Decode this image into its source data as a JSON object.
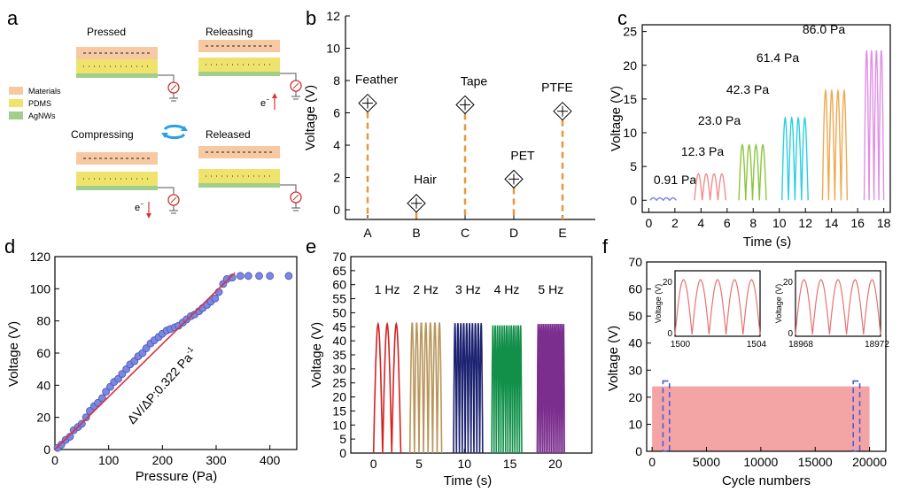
{
  "colors": {
    "materials": "#f7c9a3",
    "pdms": "#efe36e",
    "agnws": "#9fcf8a",
    "dashed_orange": "#e39a3c",
    "marker_blue": "#7b87e0",
    "fit_red": "#d9333a",
    "fatigue_pink": "#f3a5a5",
    "dashed_blue": "#4a5bd8"
  },
  "panels": {
    "a": {
      "letter": "a",
      "states": {
        "pressed": "Pressed",
        "releasing": "Releasing",
        "compressing": "Compressing",
        "released": "Released"
      },
      "legend": [
        "Materials",
        "PDMS",
        "AgNWs"
      ],
      "electron": "e",
      "electron_sup": "−",
      "cycle_icon": "cycle-arrows-icon",
      "ground_icon": "ground-icon",
      "meter_icon": "meter-icon"
    },
    "b": {
      "letter": "b"
    },
    "c": {
      "letter": "c"
    },
    "d": {
      "letter": "d"
    },
    "e": {
      "letter": "e"
    },
    "f": {
      "letter": "f"
    }
  },
  "chart_data": [
    {
      "panel": "b",
      "type": "scatter",
      "ylabel": "Voltage (V)",
      "xlabel": "",
      "categories": [
        "A",
        "B",
        "C",
        "D",
        "E"
      ],
      "point_labels": [
        "Feather",
        "Hair",
        "Tape",
        "PET",
        "PTFE"
      ],
      "values": [
        6.6,
        0.4,
        6.5,
        1.9,
        6.1
      ],
      "ylim": [
        -0.6,
        12
      ],
      "yticks": [
        0,
        2,
        4,
        6,
        8,
        10,
        12
      ],
      "marker": "diamond-cross",
      "dropline": "dashed"
    },
    {
      "panel": "c",
      "type": "line",
      "xlabel": "Time (s)",
      "ylabel": "Voltage (V)",
      "xlim": [
        -0.5,
        18.5
      ],
      "ylim": [
        -1.8,
        26
      ],
      "xticks": [
        0,
        2,
        4,
        6,
        8,
        10,
        12,
        14,
        16,
        18
      ],
      "yticks": [
        0,
        5,
        10,
        15,
        20,
        25
      ],
      "series": [
        {
          "label": "0.91 Pa",
          "t_start": 0.1,
          "t_end": 2.1,
          "amplitude": 0.35,
          "pulses": 4,
          "color": "#7a86e0"
        },
        {
          "label": "12.3 Pa",
          "t_start": 3.5,
          "t_end": 5.9,
          "amplitude": 3.9,
          "pulses": 4,
          "color": "#ef8f8f"
        },
        {
          "label": "23.0 Pa",
          "t_start": 6.9,
          "t_end": 9.0,
          "amplitude": 8.2,
          "pulses": 4,
          "color": "#8cc63f"
        },
        {
          "label": "42.3 Pa",
          "t_start": 10.2,
          "t_end": 12.2,
          "amplitude": 12.2,
          "pulses": 4,
          "color": "#2ad0e0"
        },
        {
          "label": "61.4 Pa",
          "t_start": 13.3,
          "t_end": 15.2,
          "amplitude": 16.2,
          "pulses": 4,
          "color": "#f0a850"
        },
        {
          "label": "86.0 Pa",
          "t_start": 16.5,
          "t_end": 18.0,
          "amplitude": 22.2,
          "pulses": 4,
          "color": "#e08fe6"
        }
      ]
    },
    {
      "panel": "d",
      "type": "scatter",
      "xlabel": "Pressure (Pa)",
      "ylabel": "Voltage (V)",
      "xlim": [
        0,
        450
      ],
      "ylim": [
        0,
        120
      ],
      "xticks": [
        0,
        100,
        200,
        300,
        400
      ],
      "yticks": [
        0,
        20,
        40,
        60,
        80,
        100,
        120
      ],
      "annotation": "ΔV/ΔP:0.322 Pa",
      "annotation_sup": "-1",
      "x": [
        5,
        12,
        20,
        28,
        35,
        43,
        50,
        58,
        65,
        73,
        80,
        88,
        95,
        103,
        110,
        118,
        125,
        133,
        140,
        148,
        155,
        163,
        170,
        178,
        185,
        193,
        200,
        208,
        215,
        223,
        230,
        238,
        245,
        253,
        260,
        268,
        275,
        283,
        290,
        298,
        305,
        313,
        320,
        330,
        345,
        360,
        380,
        400,
        435
      ],
      "y": [
        1,
        3,
        6,
        8,
        12,
        14,
        16,
        20,
        24,
        27,
        29,
        32,
        36,
        39,
        42,
        44,
        47,
        50,
        53,
        55,
        58,
        60,
        63,
        66,
        68,
        70,
        72,
        74,
        75,
        76,
        77,
        79,
        81,
        83,
        84,
        86,
        88,
        90,
        92,
        94,
        98,
        103,
        106,
        107,
        108,
        108,
        108,
        108,
        108
      ],
      "fit": {
        "x": [
          0,
          335
        ],
        "y": [
          0,
          110
        ]
      }
    },
    {
      "panel": "e",
      "type": "line",
      "xlabel": "Time (s)",
      "ylabel": "Voltage (V)",
      "xlim": [
        -2.5,
        24
      ],
      "ylim": [
        0,
        70
      ],
      "xticks": [
        0,
        5,
        10,
        15,
        20
      ],
      "yticks": [
        0,
        5,
        10,
        15,
        20,
        25,
        30,
        35,
        40,
        45,
        50,
        55,
        60,
        65,
        70
      ],
      "series": [
        {
          "label": "1 Hz",
          "t_start": 0,
          "t_end": 3,
          "amplitude": 46,
          "pulses": 3,
          "color": "#d42222"
        },
        {
          "label": "2 Hz",
          "t_start": 4,
          "t_end": 7.5,
          "amplitude": 46.5,
          "pulses": 7,
          "color": "#b8955a"
        },
        {
          "label": "3 Hz",
          "t_start": 8.8,
          "t_end": 12,
          "amplitude": 46.3,
          "pulses": 10,
          "color": "#1c2270"
        },
        {
          "label": "4 Hz",
          "t_start": 13,
          "t_end": 16.3,
          "amplitude": 45.5,
          "pulses": 13,
          "color": "#12904a"
        },
        {
          "label": "5 Hz",
          "t_start": 18,
          "t_end": 21,
          "amplitude": 46,
          "pulses": 15,
          "color": "#7b2e8e"
        }
      ]
    },
    {
      "panel": "f",
      "type": "area",
      "xlabel": "Cycle numbers",
      "ylabel": "Voltage (V)",
      "xlim": [
        -500,
        21500
      ],
      "ylim": [
        0,
        70
      ],
      "xticks": [
        0,
        5000,
        10000,
        15000,
        20000
      ],
      "yticks": [
        0,
        10,
        20,
        30,
        40,
        50,
        60,
        70
      ],
      "band": {
        "x_start": 0,
        "x_end": 20000,
        "y_max": 24
      },
      "highlight_ranges": [
        [
          1000,
          1600
        ],
        [
          18500,
          19100
        ]
      ],
      "insets": [
        {
          "xticks": [
            "1500",
            "1504"
          ],
          "yticks": [
            "0",
            "20"
          ],
          "ylabel": "Voltage (V)",
          "pulses": 5,
          "peak": 22
        },
        {
          "xticks": [
            "18968",
            "18972"
          ],
          "yticks": [
            "0",
            "20"
          ],
          "ylabel": "Voltage (V)",
          "pulses": 5,
          "peak": 22
        }
      ]
    }
  ]
}
